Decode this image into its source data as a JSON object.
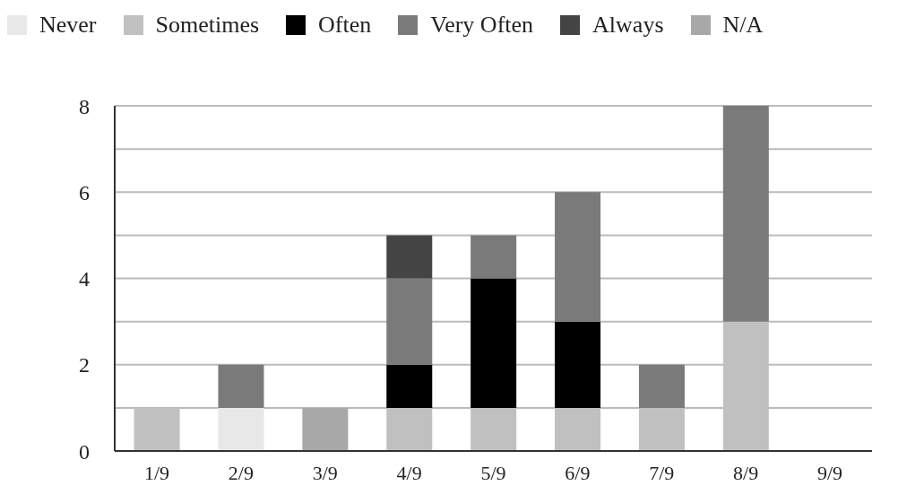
{
  "chart_data": {
    "type": "bar",
    "stacked": true,
    "categories": [
      "1/9",
      "2/9",
      "3/9",
      "4/9",
      "5/9",
      "6/9",
      "7/9",
      "8/9",
      "9/9"
    ],
    "series": [
      {
        "name": "Never",
        "color": "#e8e8e8",
        "values": [
          0,
          1,
          0,
          0,
          0,
          0,
          0,
          0,
          0
        ]
      },
      {
        "name": "Sometimes",
        "color": "#c0c0c0",
        "values": [
          1,
          0,
          0,
          1,
          1,
          1,
          1,
          3,
          0
        ]
      },
      {
        "name": "Often",
        "color": "#000000",
        "values": [
          0,
          0,
          0,
          1,
          3,
          2,
          0,
          0,
          0
        ]
      },
      {
        "name": "Very Often",
        "color": "#7a7a7a",
        "values": [
          0,
          1,
          0,
          2,
          1,
          3,
          1,
          5,
          0
        ]
      },
      {
        "name": "Always",
        "color": "#444444",
        "values": [
          0,
          0,
          0,
          1,
          0,
          0,
          0,
          0,
          0
        ]
      },
      {
        "name": "N/A",
        "color": "#a8a8a8",
        "values": [
          0,
          0,
          1,
          0,
          0,
          0,
          0,
          0,
          0
        ]
      }
    ],
    "ylim": [
      0,
      8
    ],
    "yticks": [
      0,
      {
        "value": 1,
        "label": null
      },
      2,
      {
        "value": 3,
        "label": null
      },
      4,
      {
        "value": 5,
        "label": null
      },
      6,
      {
        "value": 7,
        "label": null
      },
      8
    ],
    "grid": "y",
    "legend": "top left"
  }
}
